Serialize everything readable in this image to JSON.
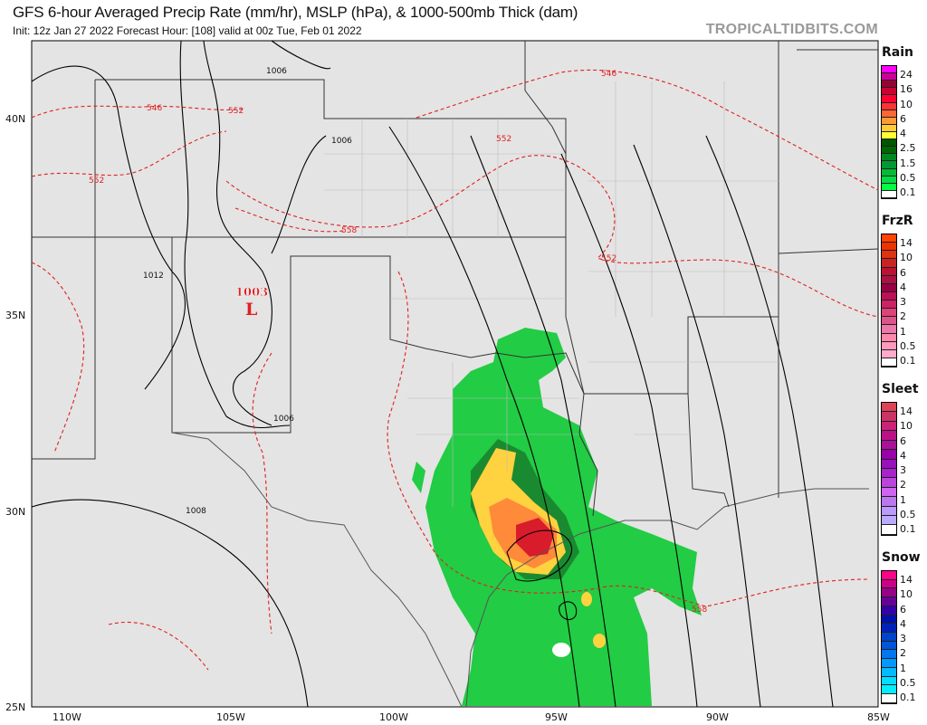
{
  "header": {
    "title": "GFS 6-hour Averaged Precip Rate (mm/hr), MSLP (hPa), & 1000-500mb Thick (dam)",
    "subtitle": "Init: 12z Jan 27 2022   Forecast Hour: [108]   valid at 00z Tue, Feb 01 2022",
    "brand": "TROPICALTIDBITS.COM"
  },
  "axes": {
    "lon_labels": [
      "110W",
      "105W",
      "100W",
      "95W",
      "90W",
      "85W"
    ],
    "lat_labels": [
      "40N",
      "35N",
      "30N",
      "25N"
    ]
  },
  "map": {
    "low_center": {
      "pressure": "1003",
      "symbol": "L",
      "color": "#e02020"
    },
    "isobar_labels": [
      "1006",
      "1006",
      "1012",
      "1006",
      "1008"
    ],
    "thickness_labels": [
      "546",
      "546",
      "552",
      "552",
      "552",
      "558",
      "552",
      "558"
    ],
    "colors": {
      "isobar": "#000000",
      "thickness": "#e02020",
      "border": "#b0b0b0",
      "background": "#e4e4e4"
    }
  },
  "legend": [
    {
      "title": "Rain",
      "labels": [
        "24",
        "16",
        "10",
        "6",
        "4",
        "2.5",
        "1.5",
        "0.5",
        "0.1"
      ],
      "colors": [
        "#ff00ff",
        "#cc0099",
        "#990033",
        "#cc0033",
        "#ff0033",
        "#ff3333",
        "#ff6633",
        "#ff9933",
        "#ffcc33",
        "#ffff33",
        "#005500",
        "#006600",
        "#008822",
        "#009933",
        "#00bb33",
        "#00dd44",
        "#00ff44",
        "#ffffff"
      ]
    },
    {
      "title": "FrzR",
      "labels": [
        "14",
        "10",
        "6",
        "4",
        "3",
        "2",
        "1",
        "0.5",
        "0.1"
      ],
      "colors": [
        "#ff4400",
        "#ee3300",
        "#dd3311",
        "#cc2222",
        "#bb1133",
        "#aa1144",
        "#990044",
        "#bb1155",
        "#cc2266",
        "#dd4477",
        "#dd5588",
        "#ee77aa",
        "#ff88aa",
        "#ff99bb",
        "#ffaacc",
        "#ffffff"
      ]
    },
    {
      "title": "Sleet",
      "labels": [
        "14",
        "10",
        "6",
        "4",
        "3",
        "2",
        "1",
        "0.5",
        "0.1"
      ],
      "colors": [
        "#dd4455",
        "#cc3366",
        "#cc2277",
        "#bb1188",
        "#aa1199",
        "#9900aa",
        "#9911bb",
        "#aa22cc",
        "#bb44dd",
        "#cc66ee",
        "#bb77ee",
        "#bb99ff",
        "#bbaaff",
        "#ffffff"
      ]
    },
    {
      "title": "Snow",
      "labels": [
        "14",
        "10",
        "6",
        "4",
        "3",
        "2",
        "1",
        "0.5",
        "0.1"
      ],
      "colors": [
        "#ff0088",
        "#cc0088",
        "#990088",
        "#660099",
        "#3300aa",
        "#0011aa",
        "#0022bb",
        "#0044cc",
        "#0055dd",
        "#0077ee",
        "#0099ff",
        "#00bbff",
        "#00ddff",
        "#00eeff",
        "#ffffff"
      ]
    }
  ]
}
